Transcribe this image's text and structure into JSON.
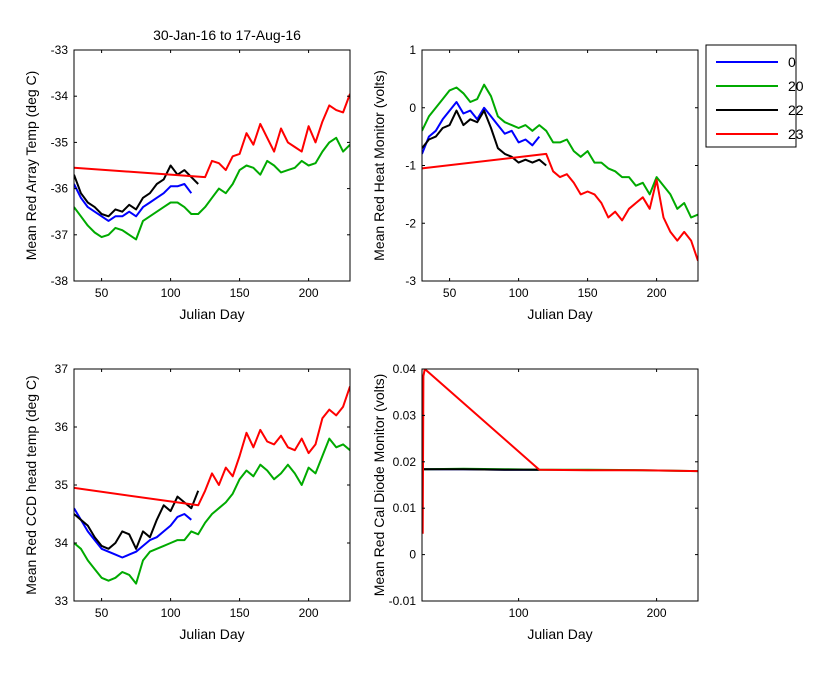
{
  "figure": {
    "title": "30-Jan-16 to 17-Aug-16",
    "legend": {
      "entries": [
        {
          "label": "0",
          "color": "#0000ff"
        },
        {
          "label": "20",
          "color": "#00aa00"
        },
        {
          "label": "22",
          "color": "#000000"
        },
        {
          "label": "23",
          "color": "#ff0000"
        }
      ]
    }
  },
  "chart_data": [
    {
      "type": "line",
      "title": "30-Jan-16 to 17-Aug-16",
      "xlabel": "Julian Day",
      "ylabel": "Mean Red Array Temp (deg C)",
      "xlim": [
        30,
        230
      ],
      "ylim": [
        -38,
        -33
      ],
      "xticks": [
        50,
        100,
        150,
        200
      ],
      "yticks": [
        -38,
        -37,
        -36,
        -35,
        -34,
        -33
      ],
      "grid": false,
      "series": [
        {
          "name": "0",
          "color": "#0000ff",
          "x": [
            30,
            35,
            40,
            45,
            50,
            55,
            60,
            65,
            70,
            75,
            80,
            85,
            90,
            95,
            100,
            105,
            110,
            115
          ],
          "y": [
            -35.9,
            -36.2,
            -36.4,
            -36.5,
            -36.6,
            -36.7,
            -36.6,
            -36.6,
            -36.5,
            -36.6,
            -36.4,
            -36.3,
            -36.2,
            -36.1,
            -35.95,
            -35.95,
            -35.9,
            -36.1
          ]
        },
        {
          "name": "20",
          "color": "#00aa00",
          "x": [
            30,
            35,
            40,
            45,
            50,
            55,
            60,
            65,
            70,
            75,
            80,
            85,
            90,
            95,
            100,
            105,
            110,
            115,
            120,
            125,
            130,
            135,
            140,
            145,
            150,
            155,
            160,
            165,
            170,
            175,
            180,
            185,
            190,
            195,
            200,
            205,
            210,
            215,
            220,
            225,
            230
          ],
          "y": [
            -36.4,
            -36.6,
            -36.8,
            -36.95,
            -37.05,
            -37.0,
            -36.85,
            -36.9,
            -37.0,
            -37.1,
            -36.7,
            -36.6,
            -36.5,
            -36.4,
            -36.3,
            -36.3,
            -36.4,
            -36.55,
            -36.55,
            -36.4,
            -36.2,
            -36.0,
            -36.1,
            -35.9,
            -35.6,
            -35.5,
            -35.55,
            -35.7,
            -35.4,
            -35.5,
            -35.65,
            -35.6,
            -35.55,
            -35.4,
            -35.5,
            -35.45,
            -35.2,
            -35.0,
            -34.9,
            -35.2,
            -35.05
          ]
        },
        {
          "name": "22",
          "color": "#000000",
          "x": [
            30,
            35,
            40,
            45,
            50,
            55,
            60,
            65,
            70,
            75,
            80,
            85,
            90,
            95,
            100,
            105,
            110,
            115,
            120
          ],
          "y": [
            -35.7,
            -36.1,
            -36.3,
            -36.4,
            -36.55,
            -36.6,
            -36.45,
            -36.5,
            -36.35,
            -36.45,
            -36.2,
            -36.1,
            -35.9,
            -35.8,
            -35.5,
            -35.7,
            -35.6,
            -35.75,
            -35.9
          ]
        },
        {
          "name": "23",
          "color": "#ff0000",
          "x": [
            30,
            125,
            130,
            135,
            140,
            145,
            150,
            155,
            160,
            165,
            170,
            175,
            180,
            185,
            190,
            195,
            200,
            205,
            210,
            215,
            220,
            225,
            230
          ],
          "y": [
            -35.55,
            -35.75,
            -35.4,
            -35.45,
            -35.6,
            -35.3,
            -35.25,
            -34.8,
            -35.05,
            -34.6,
            -34.9,
            -35.2,
            -34.7,
            -35.0,
            -35.1,
            -35.2,
            -34.65,
            -35.0,
            -34.55,
            -34.2,
            -34.3,
            -34.35,
            -33.95
          ]
        }
      ]
    },
    {
      "type": "line",
      "xlabel": "Julian Day",
      "ylabel": "Mean Red Heat Monitor (volts)",
      "xlim": [
        30,
        230
      ],
      "ylim": [
        -3,
        1
      ],
      "xticks": [
        50,
        100,
        150,
        200
      ],
      "yticks": [
        -3,
        -2,
        -1,
        0,
        1
      ],
      "grid": false,
      "series": [
        {
          "name": "0",
          "color": "#0000ff",
          "x": [
            30,
            35,
            40,
            45,
            50,
            55,
            60,
            65,
            70,
            75,
            80,
            85,
            90,
            95,
            100,
            105,
            110,
            115
          ],
          "y": [
            -0.8,
            -0.5,
            -0.4,
            -0.2,
            -0.05,
            0.1,
            -0.1,
            -0.05,
            -0.2,
            0.0,
            -0.15,
            -0.3,
            -0.45,
            -0.4,
            -0.6,
            -0.55,
            -0.65,
            -0.5
          ]
        },
        {
          "name": "20",
          "color": "#00aa00",
          "x": [
            30,
            35,
            40,
            45,
            50,
            55,
            60,
            65,
            70,
            75,
            80,
            85,
            90,
            95,
            100,
            105,
            110,
            115,
            120,
            125,
            130,
            135,
            140,
            145,
            150,
            155,
            160,
            165,
            170,
            175,
            180,
            185,
            190,
            195,
            200,
            205,
            210,
            215,
            220,
            225,
            230
          ],
          "y": [
            -0.4,
            -0.15,
            0.0,
            0.15,
            0.3,
            0.35,
            0.25,
            0.1,
            0.15,
            0.4,
            0.2,
            -0.15,
            -0.25,
            -0.3,
            -0.35,
            -0.3,
            -0.4,
            -0.3,
            -0.4,
            -0.6,
            -0.6,
            -0.55,
            -0.75,
            -0.85,
            -0.75,
            -0.95,
            -0.95,
            -1.05,
            -1.1,
            -1.2,
            -1.2,
            -1.35,
            -1.3,
            -1.5,
            -1.2,
            -1.35,
            -1.5,
            -1.75,
            -1.65,
            -1.9,
            -1.85
          ]
        },
        {
          "name": "22",
          "color": "#000000",
          "x": [
            30,
            35,
            40,
            45,
            50,
            55,
            60,
            65,
            70,
            75,
            80,
            85,
            90,
            95,
            100,
            105,
            110,
            115,
            120
          ],
          "y": [
            -0.7,
            -0.55,
            -0.5,
            -0.35,
            -0.3,
            -0.05,
            -0.3,
            -0.2,
            -0.25,
            -0.05,
            -0.35,
            -0.7,
            -0.8,
            -0.85,
            -0.95,
            -0.9,
            -0.95,
            -0.9,
            -1.0
          ]
        },
        {
          "name": "23",
          "color": "#ff0000",
          "x": [
            30,
            120,
            125,
            130,
            135,
            140,
            145,
            150,
            155,
            160,
            165,
            170,
            175,
            180,
            185,
            190,
            195,
            200,
            205,
            210,
            215,
            220,
            225,
            230
          ],
          "y": [
            -1.05,
            -0.8,
            -1.1,
            -1.2,
            -1.15,
            -1.3,
            -1.5,
            -1.45,
            -1.5,
            -1.65,
            -1.9,
            -1.8,
            -1.95,
            -1.75,
            -1.65,
            -1.55,
            -1.75,
            -1.25,
            -1.9,
            -2.15,
            -2.3,
            -2.15,
            -2.3,
            -2.65
          ]
        }
      ]
    },
    {
      "type": "line",
      "xlabel": "Julian Day",
      "ylabel": "Mean Red CCD head temp (deg C)",
      "xlim": [
        30,
        230
      ],
      "ylim": [
        33,
        37
      ],
      "xticks": [
        50,
        100,
        150,
        200
      ],
      "yticks": [
        33,
        34,
        35,
        36,
        37
      ],
      "grid": false,
      "series": [
        {
          "name": "0",
          "color": "#0000ff",
          "x": [
            30,
            35,
            40,
            45,
            50,
            55,
            60,
            65,
            70,
            75,
            80,
            85,
            90,
            95,
            100,
            105,
            110,
            115
          ],
          "y": [
            34.6,
            34.4,
            34.2,
            34.05,
            33.9,
            33.85,
            33.8,
            33.75,
            33.8,
            33.85,
            33.95,
            34.05,
            34.1,
            34.2,
            34.3,
            34.45,
            34.5,
            34.4
          ]
        },
        {
          "name": "20",
          "color": "#00aa00",
          "x": [
            30,
            35,
            40,
            45,
            50,
            55,
            60,
            65,
            70,
            75,
            80,
            85,
            90,
            95,
            100,
            105,
            110,
            115,
            120,
            125,
            130,
            135,
            140,
            145,
            150,
            155,
            160,
            165,
            170,
            175,
            180,
            185,
            190,
            195,
            200,
            205,
            210,
            215,
            220,
            225,
            230
          ],
          "y": [
            34.0,
            33.9,
            33.7,
            33.55,
            33.4,
            33.35,
            33.4,
            33.5,
            33.45,
            33.3,
            33.7,
            33.85,
            33.9,
            33.95,
            34.0,
            34.05,
            34.05,
            34.2,
            34.15,
            34.35,
            34.5,
            34.6,
            34.7,
            34.85,
            35.1,
            35.25,
            35.15,
            35.35,
            35.25,
            35.1,
            35.2,
            35.35,
            35.2,
            35.0,
            35.3,
            35.2,
            35.5,
            35.8,
            35.65,
            35.7,
            35.6
          ]
        },
        {
          "name": "22",
          "color": "#000000",
          "x": [
            30,
            35,
            40,
            45,
            50,
            55,
            60,
            65,
            70,
            75,
            80,
            85,
            90,
            95,
            100,
            105,
            110,
            115,
            120
          ],
          "y": [
            34.5,
            34.4,
            34.3,
            34.1,
            33.95,
            33.9,
            34.0,
            34.2,
            34.15,
            33.9,
            34.2,
            34.1,
            34.4,
            34.65,
            34.55,
            34.8,
            34.7,
            34.6,
            34.9
          ]
        },
        {
          "name": "23",
          "color": "#ff0000",
          "x": [
            30,
            120,
            125,
            130,
            135,
            140,
            145,
            150,
            155,
            160,
            165,
            170,
            175,
            180,
            185,
            190,
            195,
            200,
            205,
            210,
            215,
            220,
            225,
            230
          ],
          "y": [
            34.95,
            34.65,
            34.9,
            35.2,
            35.0,
            35.3,
            35.15,
            35.5,
            35.9,
            35.65,
            35.95,
            35.75,
            35.7,
            35.85,
            35.65,
            35.6,
            35.8,
            35.55,
            35.7,
            36.15,
            36.3,
            36.2,
            36.35,
            36.7
          ]
        }
      ]
    },
    {
      "type": "line",
      "xlabel": "Julian Day",
      "ylabel": "Mean Red Cal Diode Monitor (volts)",
      "xlim": [
        30,
        230
      ],
      "ylim": [
        -0.01,
        0.04
      ],
      "xticks": [
        100,
        200
      ],
      "yticks": [
        -0.01,
        0.0,
        0.01,
        0.02,
        0.03,
        0.04
      ],
      "ytick_labels": [
        "-0.01",
        "0",
        "0.01",
        "0.02",
        "0.03",
        "0.04"
      ],
      "grid": false,
      "series": [
        {
          "name": "0",
          "color": "#0000ff",
          "x": [
            31,
            60,
            90,
            115
          ],
          "y": [
            0.0184,
            0.0184,
            0.0183,
            0.0183
          ]
        },
        {
          "name": "20",
          "color": "#00aa00",
          "x": [
            31,
            60,
            90,
            115,
            150,
            190,
            230
          ],
          "y": [
            0.0184,
            0.0185,
            0.0184,
            0.0183,
            0.0183,
            0.0182,
            0.018
          ]
        },
        {
          "name": "22",
          "color": "#000000",
          "x": [
            31,
            60,
            90,
            115
          ],
          "y": [
            0.0184,
            0.0184,
            0.0183,
            0.0183
          ]
        },
        {
          "name": "23",
          "color": "#ff0000",
          "x": [
            30.5,
            31,
            32,
            115,
            150,
            190,
            230
          ],
          "y": [
            0.0045,
            0.0385,
            0.04,
            0.0183,
            0.0182,
            0.0182,
            0.018
          ]
        }
      ]
    }
  ]
}
